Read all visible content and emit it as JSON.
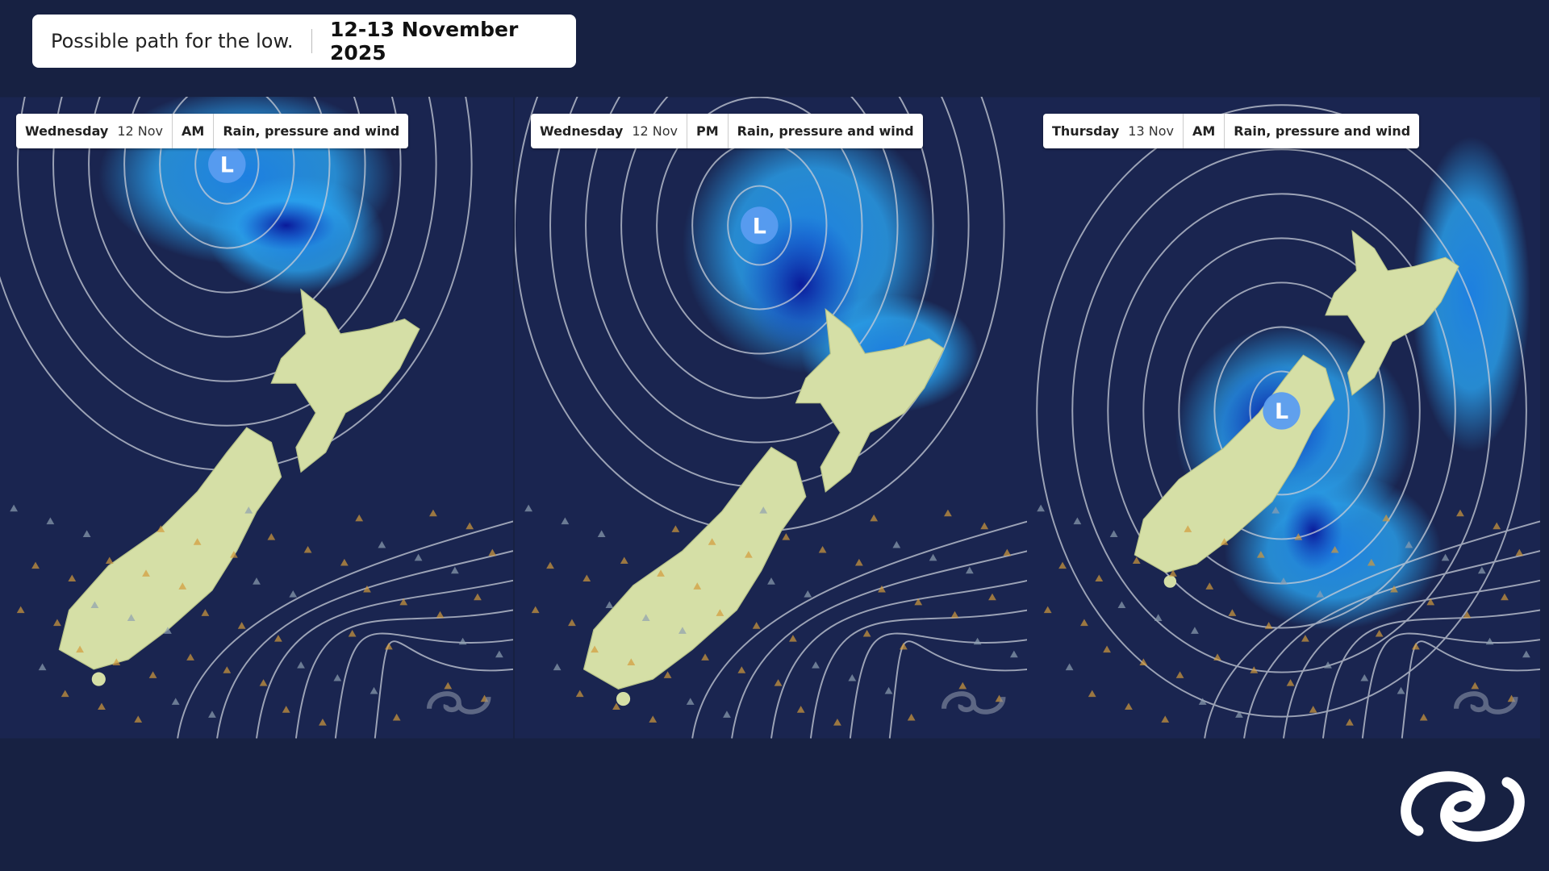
{
  "header": {
    "caption": "Possible path for the low.",
    "date": "12-13 November 2025"
  },
  "panels": [
    {
      "day": "Wednesday",
      "date": "12 Nov",
      "period": "AM",
      "layer": "Rain, pressure and wind",
      "low": "L"
    },
    {
      "day": "Wednesday",
      "date": "12 Nov",
      "period": "PM",
      "layer": "Rain, pressure and wind",
      "low": "L"
    },
    {
      "day": "Thursday",
      "date": "13 Nov",
      "period": "AM",
      "layer": "Rain, pressure and wind",
      "low": "L"
    }
  ]
}
